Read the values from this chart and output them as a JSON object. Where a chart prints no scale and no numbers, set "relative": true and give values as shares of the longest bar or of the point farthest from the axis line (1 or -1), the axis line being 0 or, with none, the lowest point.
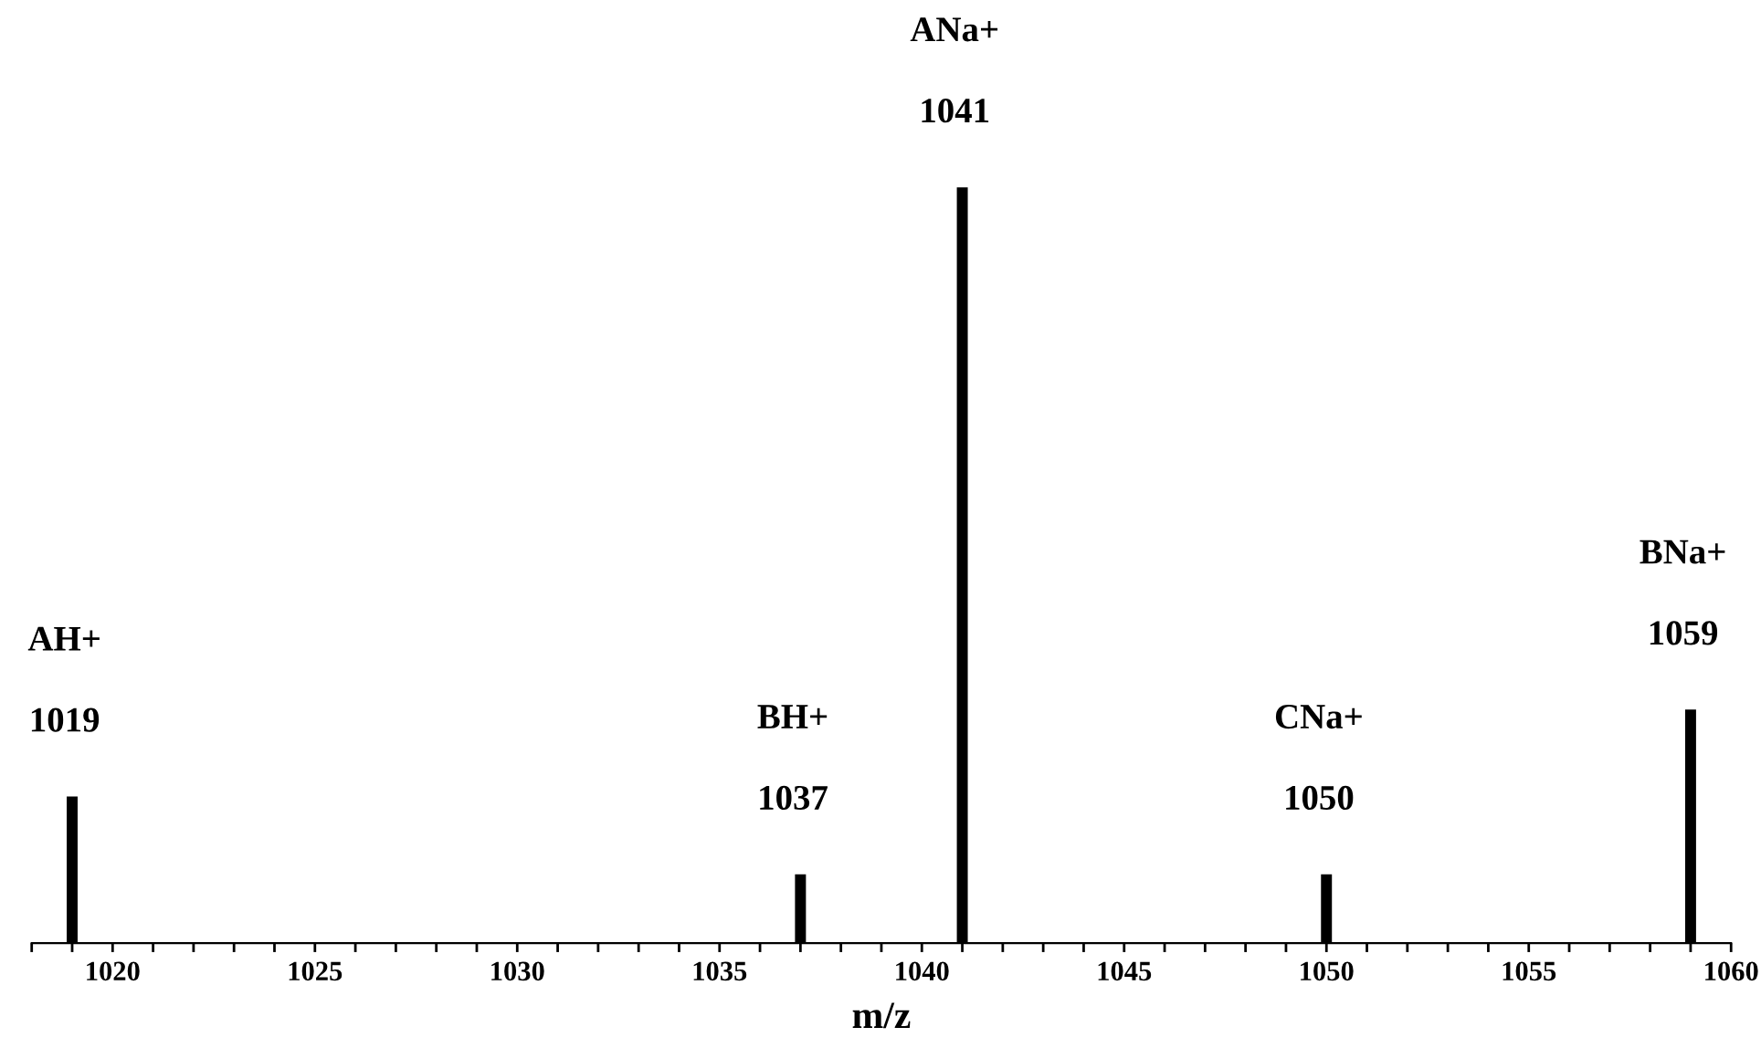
{
  "chart_data": {
    "type": "bar",
    "relative": true,
    "xlabel": "m/z",
    "x": [
      1019,
      1037,
      1041,
      1050,
      1059
    ],
    "values": [
      0.194,
      0.091,
      1,
      0.091,
      0.309
    ],
    "color": "#000000",
    "xlim": [
      1018,
      1060
    ],
    "xticks": [
      {
        "value": 1018,
        "label": null
      },
      {
        "value": 1019,
        "label": null
      },
      1020,
      {
        "value": 1021,
        "label": null
      },
      {
        "value": 1022,
        "label": null
      },
      {
        "value": 1023,
        "label": null
      },
      {
        "value": 1024,
        "label": null
      },
      1025,
      {
        "value": 1026,
        "label": null
      },
      {
        "value": 1027,
        "label": null
      },
      {
        "value": 1028,
        "label": null
      },
      {
        "value": 1029,
        "label": null
      },
      1030,
      {
        "value": 1031,
        "label": null
      },
      {
        "value": 1032,
        "label": null
      },
      {
        "value": 1033,
        "label": null
      },
      {
        "value": 1034,
        "label": null
      },
      1035,
      {
        "value": 1036,
        "label": null
      },
      {
        "value": 1037,
        "label": null
      },
      {
        "value": 1038,
        "label": null
      },
      {
        "value": 1039,
        "label": null
      },
      1040,
      {
        "value": 1041,
        "label": null
      },
      {
        "value": 1042,
        "label": null
      },
      {
        "value": 1043,
        "label": null
      },
      {
        "value": 1044,
        "label": null
      },
      1045,
      {
        "value": 1046,
        "label": null
      },
      {
        "value": 1047,
        "label": null
      },
      {
        "value": 1048,
        "label": null
      },
      {
        "value": 1049,
        "label": null
      },
      1050,
      {
        "value": 1051,
        "label": null
      },
      {
        "value": 1052,
        "label": null
      },
      {
        "value": 1053,
        "label": null
      },
      {
        "value": 1054,
        "label": null
      },
      1055,
      {
        "value": 1056,
        "label": null
      },
      {
        "value": 1057,
        "label": null
      },
      {
        "value": 1058,
        "label": null
      },
      {
        "value": 1059,
        "label": null
      },
      1060
    ],
    "tick_labels": "x",
    "grid": false,
    "annotations": [
      "AH+",
      "1019",
      "BH+",
      "1037",
      "ANa+",
      "1041",
      "CNa+",
      "1050",
      "BNa+",
      "1059"
    ]
  }
}
